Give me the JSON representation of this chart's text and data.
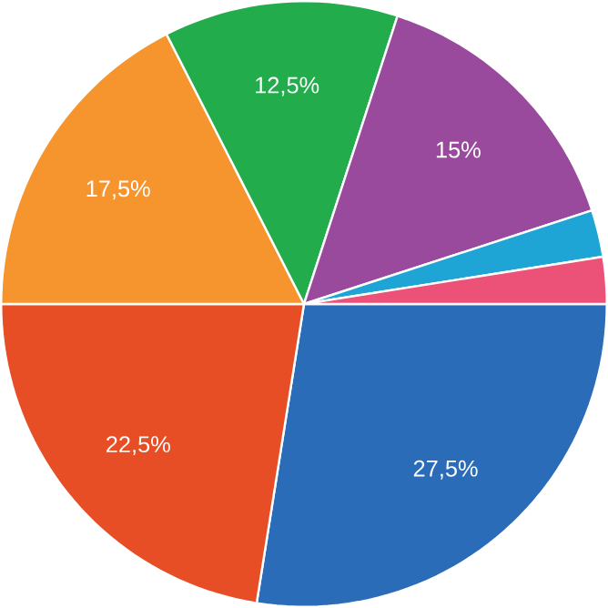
{
  "chart_data": {
    "type": "pie",
    "categories": [
      null,
      null,
      null,
      null,
      null,
      null,
      null
    ],
    "values": [
      27.5,
      22.5,
      17.5,
      12.5,
      15,
      2.5,
      2.5
    ],
    "colors": [
      "#2a6cb8",
      "#e84e26",
      "#f6952e",
      "#22ac4c",
      "#9a4a9d",
      "#1fa5d5",
      "#ec5177"
    ],
    "value_labels": [
      "27,5%",
      "22,5%",
      "17,5%",
      "12,5%",
      "15%",
      null,
      null
    ]
  }
}
